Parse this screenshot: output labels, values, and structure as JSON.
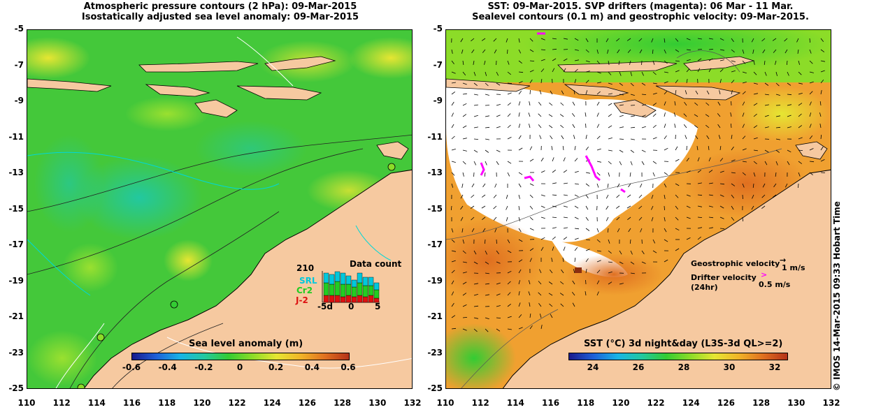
{
  "left_panel": {
    "title_line1": "Atmospheric pressure contours (2 hPa): 09-Mar-2015",
    "title_line2": "Isostatically adjusted sea level anomaly: 09-Mar-2015",
    "colorbar": {
      "title": "Sea level anomaly (m)",
      "ticks": [
        "-0.6",
        "-0.4",
        "-0.2",
        "0",
        "0.2",
        "0.4",
        "0.6"
      ],
      "colors": [
        "#1a1a8c",
        "#1e5fd8",
        "#18b4e6",
        "#22c8a0",
        "#33cc33",
        "#8cdc28",
        "#e6e632",
        "#f0b428",
        "#e07020",
        "#b43218"
      ]
    },
    "data_count": {
      "title": "Data count",
      "max_label": "210",
      "satellites": [
        {
          "name": "SRL",
          "color": "#00c8dc"
        },
        {
          "name": "Cr2",
          "color": "#22cc22"
        },
        {
          "name": "J-2",
          "color": "#dd1111"
        }
      ],
      "x_ticks": [
        "-5d",
        "0",
        "5"
      ]
    }
  },
  "right_panel": {
    "title_line1": "SST: 09-Mar-2015. SVP drifters (magenta): 06 Mar - 11 Mar.",
    "title_line2": "Sealevel contours (0.1 m) and geostrophic velocity: 09-Mar-2015.",
    "colorbar": {
      "title": "SST (°C) 3d night&day (L3S-3d QL>=2)",
      "ticks": [
        "24",
        "26",
        "28",
        "30",
        "32"
      ],
      "colors": [
        "#1a1a8c",
        "#1e5fd8",
        "#18b4e6",
        "#22c8a0",
        "#33cc33",
        "#8cdc28",
        "#e6e632",
        "#f0b428",
        "#e07020",
        "#b43218"
      ]
    },
    "legend": {
      "geostrophic_label": "Geostrophic velocity",
      "geostrophic_scale": "1 m/s",
      "drifter_label_line1": "Drifter velocity",
      "drifter_label_line2": "(24hr)",
      "drifter_scale": "0.5 m/s"
    }
  },
  "axes": {
    "y_ticks": [
      "-5",
      "-7",
      "-9",
      "-11",
      "-13",
      "-15",
      "-17",
      "-19",
      "-21",
      "-23",
      "-25"
    ],
    "x_ticks": [
      "110",
      "112",
      "114",
      "116",
      "118",
      "120",
      "122",
      "124",
      "126",
      "128",
      "130",
      "132"
    ],
    "lon_range": [
      110,
      132
    ],
    "lat_range": [
      -25,
      -5
    ]
  },
  "colors": {
    "land": "#f6c9a0",
    "ocean_green": "#44c83a",
    "sst_orange": "#f0a030",
    "cloud_white": "#ffffff",
    "drifter_magenta": "#ff00ff"
  },
  "credit": "© IMOS 14-Mar-2015 09:33 Hobart Time"
}
